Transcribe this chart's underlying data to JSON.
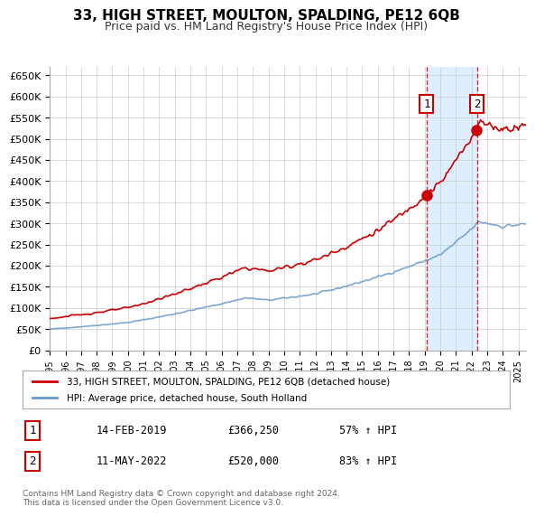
{
  "title": "33, HIGH STREET, MOULTON, SPALDING, PE12 6QB",
  "subtitle": "Price paid vs. HM Land Registry's House Price Index (HPI)",
  "legend_line1": "33, HIGH STREET, MOULTON, SPALDING, PE12 6QB (detached house)",
  "legend_line2": "HPI: Average price, detached house, South Holland",
  "footer": "Contains HM Land Registry data © Crown copyright and database right 2024.\nThis data is licensed under the Open Government Licence v3.0.",
  "sale1_date": "14-FEB-2019",
  "sale1_price": "£366,250",
  "sale1_hpi": "57% ↑ HPI",
  "sale2_date": "11-MAY-2022",
  "sale2_price": "£520,000",
  "sale2_hpi": "83% ↑ HPI",
  "sale1_year": 2019.12,
  "sale2_year": 2022.36,
  "sale1_value": 366250,
  "sale2_value": 520000,
  "ylim_min": 0,
  "ylim_max": 670000,
  "xlim_min": 1995.0,
  "xlim_max": 2025.5,
  "red_color": "#cc0000",
  "blue_color": "#6699cc",
  "bg_color": "#f0f4ff",
  "plot_bg": "#ffffff",
  "shade_color": "#ddeeff",
  "grid_color": "#cccccc"
}
